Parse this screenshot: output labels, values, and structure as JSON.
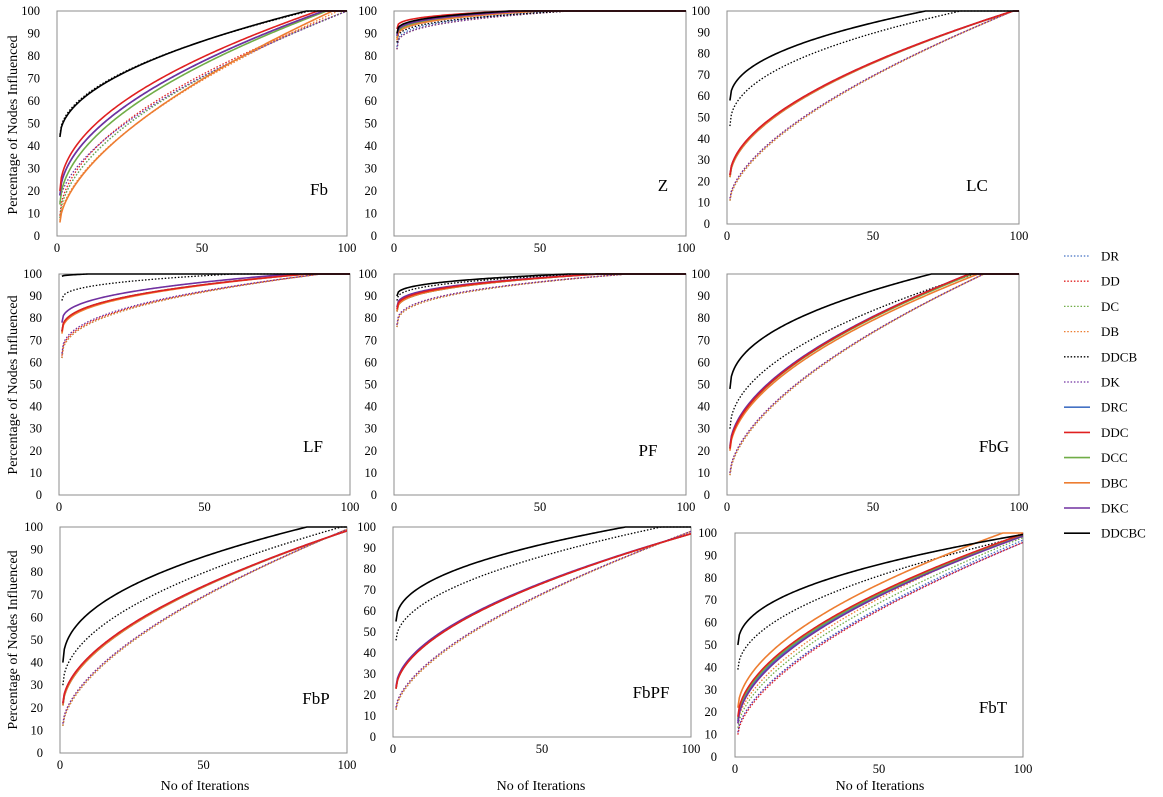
{
  "chart_data": {
    "type": "line",
    "xlabel": "No of Iterations",
    "ylabel": "Percentage of Nodes Influenced",
    "x_ticks": [
      "0",
      "50",
      "100"
    ],
    "y_ticks": [
      "0",
      "10",
      "20",
      "30",
      "40",
      "50",
      "60",
      "70",
      "80",
      "90",
      "100"
    ],
    "xlim": [
      0,
      100
    ],
    "ylim": [
      0,
      100
    ],
    "legend": [
      {
        "name": "DR",
        "color": "#4472c4",
        "style": "dotted"
      },
      {
        "name": "DD",
        "color": "#e02020",
        "style": "dotted"
      },
      {
        "name": "DC",
        "color": "#70ad47",
        "style": "dotted"
      },
      {
        "name": "DB",
        "color": "#ed7d31",
        "style": "dotted"
      },
      {
        "name": "DDCB",
        "color": "#000000",
        "style": "dotted"
      },
      {
        "name": "DK",
        "color": "#7030a0",
        "style": "dotted"
      },
      {
        "name": "DRC",
        "color": "#4472c4",
        "style": "solid"
      },
      {
        "name": "DDC",
        "color": "#e02020",
        "style": "solid"
      },
      {
        "name": "DCC",
        "color": "#70ad47",
        "style": "solid"
      },
      {
        "name": "DBC",
        "color": "#ed7d31",
        "style": "solid"
      },
      {
        "name": "DKC",
        "color": "#7030a0",
        "style": "solid"
      },
      {
        "name": "DDCBC",
        "color": "#000000",
        "style": "solid"
      }
    ],
    "panels": [
      {
        "name": "Fb",
        "series": {
          "DR": {
            "start": 8,
            "end_x": 100,
            "shape": 0.55
          },
          "DD": {
            "start": 9,
            "end_x": 100,
            "shape": 0.53
          },
          "DC": {
            "start": 8,
            "end_x": 100,
            "shape": 0.55
          },
          "DB": {
            "start": 7,
            "end_x": 97,
            "shape": 0.6
          },
          "DDCB": {
            "start": 45,
            "end_x": 87,
            "shape": 0.5
          },
          "DK": {
            "start": 15,
            "end_x": 100,
            "shape": 0.6
          },
          "DRC": {
            "start": 18,
            "end_x": 92,
            "shape": 0.52
          },
          "DDC": {
            "start": 20,
            "end_x": 90,
            "shape": 0.5
          },
          "DCC": {
            "start": 14,
            "end_x": 93,
            "shape": 0.52
          },
          "DBC": {
            "start": 6,
            "end_x": 95,
            "shape": 0.6
          },
          "DKC": {
            "start": 18,
            "end_x": 92,
            "shape": 0.52
          },
          "DDCBC": {
            "start": 44,
            "end_x": 86,
            "shape": 0.5
          }
        }
      },
      {
        "name": "Z",
        "series": {
          "DR": {
            "start": 84,
            "end_x": 55,
            "shape": 0.3
          },
          "DD": {
            "start": 88,
            "end_x": 50,
            "shape": 0.3
          },
          "DC": {
            "start": 83,
            "end_x": 60,
            "shape": 0.3
          },
          "DB": {
            "start": 83,
            "end_x": 60,
            "shape": 0.3
          },
          "DDCB": {
            "start": 86,
            "end_x": 60,
            "shape": 0.3
          },
          "DK": {
            "start": 83,
            "end_x": 60,
            "shape": 0.3
          },
          "DRC": {
            "start": 89,
            "end_x": 45,
            "shape": 0.3
          },
          "DDC": {
            "start": 92,
            "end_x": 40,
            "shape": 0.3
          },
          "DCC": {
            "start": 88,
            "end_x": 45,
            "shape": 0.3
          },
          "DBC": {
            "start": 87,
            "end_x": 50,
            "shape": 0.3
          },
          "DKC": {
            "start": 89,
            "end_x": 45,
            "shape": 0.3
          },
          "DDCBC": {
            "start": 90,
            "end_x": 40,
            "shape": 0.3
          }
        }
      },
      {
        "name": "LC",
        "series": {
          "DR": {
            "start": 11,
            "end_x": 98,
            "shape": 0.62
          },
          "DD": {
            "start": 12,
            "end_x": 98,
            "shape": 0.62
          },
          "DC": {
            "start": 11,
            "end_x": 98,
            "shape": 0.62
          },
          "DB": {
            "start": 11,
            "end_x": 98,
            "shape": 0.62
          },
          "DDCB": {
            "start": 46,
            "end_x": 80,
            "shape": 0.45
          },
          "DK": {
            "start": 12,
            "end_x": 98,
            "shape": 0.62
          },
          "DRC": {
            "start": 22,
            "end_x": 98,
            "shape": 0.55
          },
          "DDC": {
            "start": 23,
            "end_x": 98,
            "shape": 0.55
          },
          "DCC": {
            "start": 22,
            "end_x": 98,
            "shape": 0.55
          },
          "DBC": {
            "start": 22,
            "end_x": 98,
            "shape": 0.55
          },
          "DKC": {
            "start": 23,
            "end_x": 98,
            "shape": 0.55
          },
          "DDCBC": {
            "start": 58,
            "end_x": 68,
            "shape": 0.45
          }
        }
      },
      {
        "name": "LF",
        "series": {
          "DR": {
            "start": 62,
            "end_x": 90,
            "shape": 0.4
          },
          "DD": {
            "start": 63,
            "end_x": 90,
            "shape": 0.4
          },
          "DC": {
            "start": 62,
            "end_x": 90,
            "shape": 0.4
          },
          "DB": {
            "start": 62,
            "end_x": 90,
            "shape": 0.4
          },
          "DDCB": {
            "start": 88,
            "end_x": 60,
            "shape": 0.35
          },
          "DK": {
            "start": 64,
            "end_x": 90,
            "shape": 0.4
          },
          "DRC": {
            "start": 74,
            "end_x": 85,
            "shape": 0.38
          },
          "DDC": {
            "start": 74,
            "end_x": 85,
            "shape": 0.38
          },
          "DCC": {
            "start": 74,
            "end_x": 85,
            "shape": 0.38
          },
          "DBC": {
            "start": 73,
            "end_x": 85,
            "shape": 0.38
          },
          "DKC": {
            "start": 78,
            "end_x": 80,
            "shape": 0.38
          },
          "DDCBC": {
            "start": 99,
            "end_x": 10,
            "shape": 0.5
          }
        }
      },
      {
        "name": "PF",
        "series": {
          "DR": {
            "start": 76,
            "end_x": 80,
            "shape": 0.35
          },
          "DD": {
            "start": 77,
            "end_x": 80,
            "shape": 0.35
          },
          "DC": {
            "start": 76,
            "end_x": 80,
            "shape": 0.35
          },
          "DB": {
            "start": 76,
            "end_x": 80,
            "shape": 0.35
          },
          "DDCB": {
            "start": 88,
            "end_x": 65,
            "shape": 0.35
          },
          "DK": {
            "start": 77,
            "end_x": 80,
            "shape": 0.35
          },
          "DRC": {
            "start": 83,
            "end_x": 70,
            "shape": 0.35
          },
          "DDC": {
            "start": 84,
            "end_x": 70,
            "shape": 0.35
          },
          "DCC": {
            "start": 83,
            "end_x": 70,
            "shape": 0.35
          },
          "DBC": {
            "start": 83,
            "end_x": 70,
            "shape": 0.35
          },
          "DKC": {
            "start": 85,
            "end_x": 70,
            "shape": 0.35
          },
          "DDCBC": {
            "start": 90,
            "end_x": 60,
            "shape": 0.35
          }
        }
      },
      {
        "name": "FbG",
        "series": {
          "DR": {
            "start": 9,
            "end_x": 88,
            "shape": 0.6
          },
          "DD": {
            "start": 10,
            "end_x": 88,
            "shape": 0.6
          },
          "DC": {
            "start": 9,
            "end_x": 88,
            "shape": 0.6
          },
          "DB": {
            "start": 9,
            "end_x": 88,
            "shape": 0.6
          },
          "DDCB": {
            "start": 30,
            "end_x": 85,
            "shape": 0.5
          },
          "DK": {
            "start": 10,
            "end_x": 88,
            "shape": 0.6
          },
          "DRC": {
            "start": 21,
            "end_x": 83,
            "shape": 0.55
          },
          "DDC": {
            "start": 21,
            "end_x": 83,
            "shape": 0.55
          },
          "DCC": {
            "start": 21,
            "end_x": 84,
            "shape": 0.55
          },
          "DBC": {
            "start": 20,
            "end_x": 86,
            "shape": 0.55
          },
          "DKC": {
            "start": 22,
            "end_x": 83,
            "shape": 0.55
          },
          "DDCBC": {
            "start": 48,
            "end_x": 70,
            "shape": 0.45
          }
        }
      },
      {
        "name": "FbP",
        "series": {
          "DR": {
            "start": 12,
            "end_x": 102,
            "shape": 0.6
          },
          "DD": {
            "start": 13,
            "end_x": 102,
            "shape": 0.6
          },
          "DC": {
            "start": 12,
            "end_x": 102,
            "shape": 0.6
          },
          "DB": {
            "start": 12,
            "end_x": 102,
            "shape": 0.6
          },
          "DDCB": {
            "start": 30,
            "end_x": 98,
            "shape": 0.5
          },
          "DK": {
            "start": 13,
            "end_x": 102,
            "shape": 0.6
          },
          "DRC": {
            "start": 21,
            "end_x": 104,
            "shape": 0.55
          },
          "DDC": {
            "start": 22,
            "end_x": 104,
            "shape": 0.55
          },
          "DCC": {
            "start": 21,
            "end_x": 104,
            "shape": 0.55
          },
          "DBC": {
            "start": 21,
            "end_x": 104,
            "shape": 0.55
          },
          "DKC": {
            "start": 22,
            "end_x": 104,
            "shape": 0.55
          },
          "DDCBC": {
            "start": 40,
            "end_x": 86,
            "shape": 0.45
          }
        }
      },
      {
        "name": "FbPF",
        "series": {
          "DR": {
            "start": 13,
            "end_x": 104,
            "shape": 0.62
          },
          "DD": {
            "start": 14,
            "end_x": 104,
            "shape": 0.62
          },
          "DC": {
            "start": 13,
            "end_x": 104,
            "shape": 0.62
          },
          "DB": {
            "start": 13,
            "end_x": 104,
            "shape": 0.62
          },
          "DDCB": {
            "start": 46,
            "end_x": 90,
            "shape": 0.5
          },
          "DK": {
            "start": 14,
            "end_x": 104,
            "shape": 0.62
          },
          "DRC": {
            "start": 23,
            "end_x": 108,
            "shape": 0.55
          },
          "DDC": {
            "start": 23,
            "end_x": 108,
            "shape": 0.55
          },
          "DCC": {
            "start": 23,
            "end_x": 108,
            "shape": 0.55
          },
          "DBC": {
            "start": 23,
            "end_x": 108,
            "shape": 0.55
          },
          "DKC": {
            "start": 24,
            "end_x": 108,
            "shape": 0.55
          },
          "DDCBC": {
            "start": 55,
            "end_x": 78,
            "shape": 0.45
          }
        }
      },
      {
        "name": "FbT",
        "series": {
          "DR": {
            "start": 11,
            "end_x": 106,
            "shape": 0.62
          },
          "DD": {
            "start": 10,
            "end_x": 108,
            "shape": 0.62
          },
          "DC": {
            "start": 13,
            "end_x": 104,
            "shape": 0.6
          },
          "DB": {
            "start": 15,
            "end_x": 100,
            "shape": 0.6
          },
          "DDCB": {
            "start": 39,
            "end_x": 105,
            "shape": 0.5
          },
          "DK": {
            "start": 11,
            "end_x": 108,
            "shape": 0.62
          },
          "DRC": {
            "start": 16,
            "end_x": 102,
            "shape": 0.55
          },
          "DDC": {
            "start": 18,
            "end_x": 101,
            "shape": 0.55
          },
          "DCC": {
            "start": 17,
            "end_x": 102,
            "shape": 0.55
          },
          "DBC": {
            "start": 22,
            "end_x": 93,
            "shape": 0.55
          },
          "DKC": {
            "start": 15,
            "end_x": 103,
            "shape": 0.55
          },
          "DDCBC": {
            "start": 50,
            "end_x": 103,
            "shape": 0.45
          }
        }
      }
    ]
  }
}
